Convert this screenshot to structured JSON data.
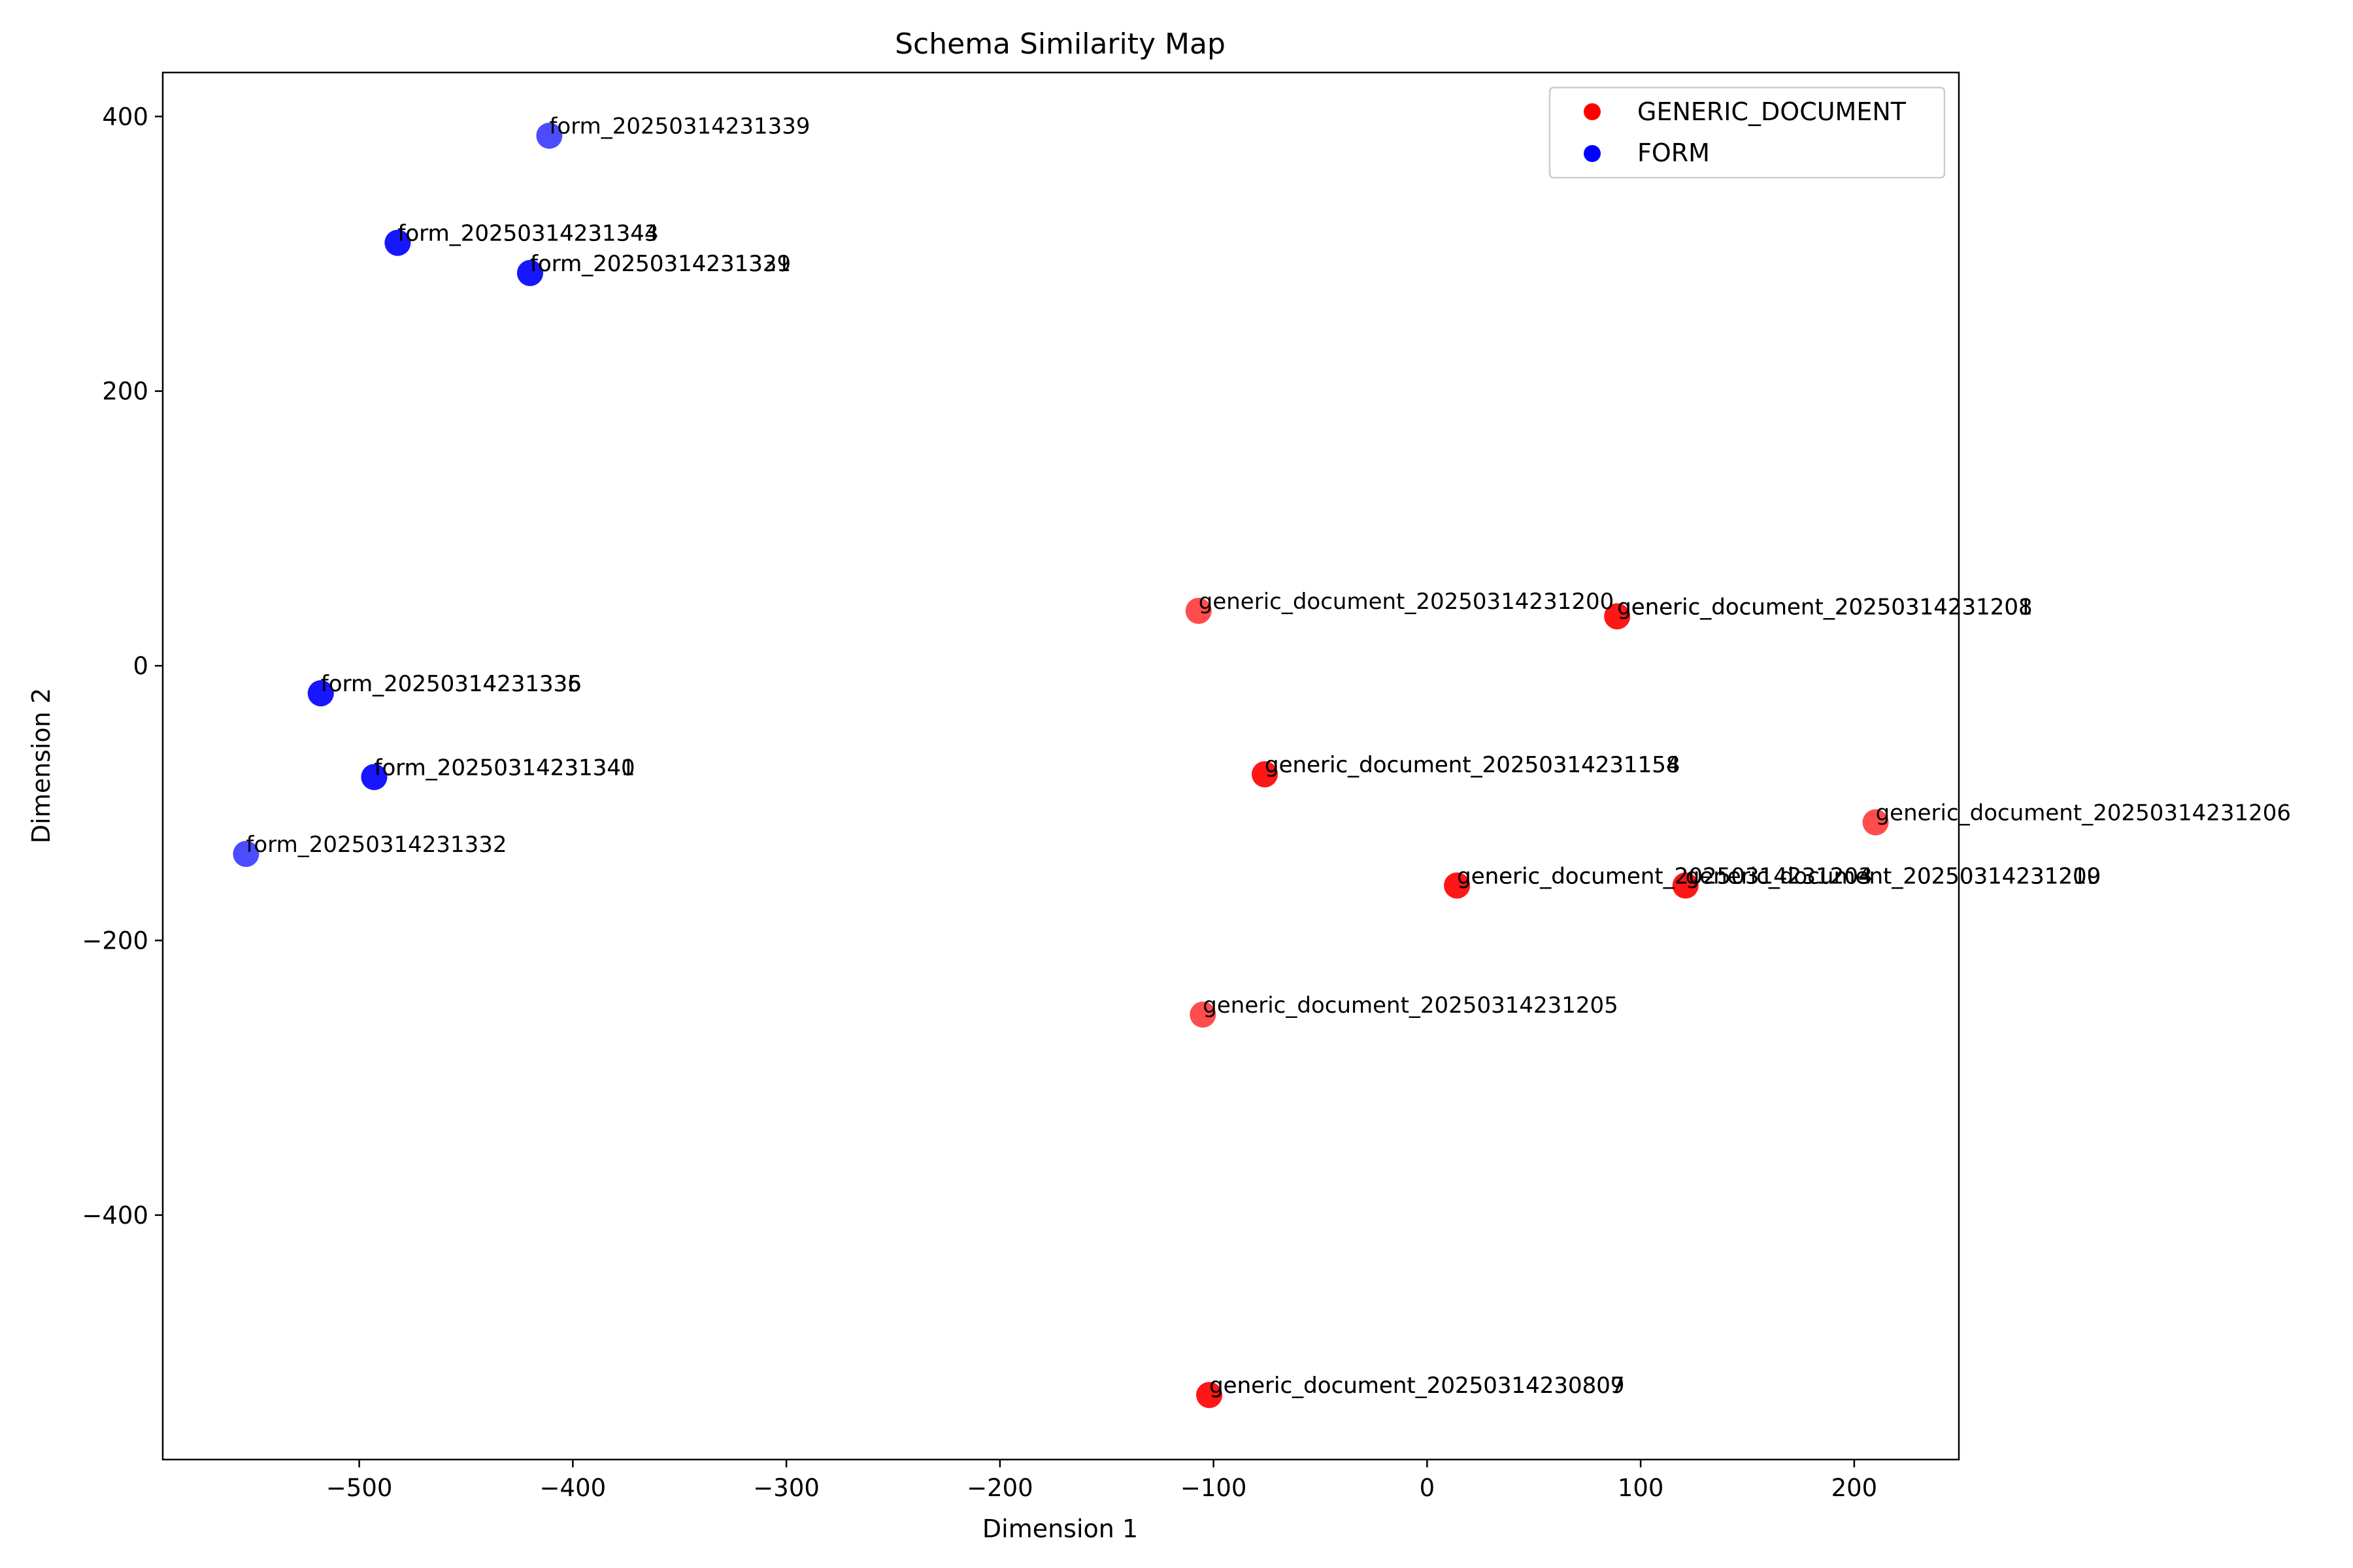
{
  "chart_data": {
    "type": "scatter",
    "title": "Schema Similarity Map",
    "xlabel": "Dimension 1",
    "ylabel": "Dimension 2",
    "xlim": [
      -592,
      249
    ],
    "ylim": [
      -578,
      432
    ],
    "xticks": [
      -500,
      -400,
      -300,
      -200,
      -100,
      0,
      100,
      200
    ],
    "yticks": [
      -400,
      -200,
      0,
      200,
      400
    ],
    "xtick_labels": [
      "−500",
      "−400",
      "−300",
      "−200",
      "−100",
      "0",
      "100",
      "200"
    ],
    "ytick_labels": [
      "−400",
      "−200",
      "0",
      "200",
      "400"
    ],
    "grid": false,
    "legend_position": "top-right",
    "series": [
      {
        "name": "GENERIC_DOCUMENT",
        "color": "#ff0000",
        "points": [
          {
            "x": -107,
            "y": 40,
            "label": "generic_document_20250314231200"
          },
          {
            "x": 89,
            "y": 36,
            "label": "generic_document_20250314231201"
          },
          {
            "x": 89,
            "y": 36,
            "label": "generic_document_20250314231208"
          },
          {
            "x": -76,
            "y": -79,
            "label": "generic_document_20250314231154"
          },
          {
            "x": -76,
            "y": -79,
            "label": "generic_document_20250314231158"
          },
          {
            "x": 210,
            "y": -114,
            "label": "generic_document_20250314231206"
          },
          {
            "x": 14,
            "y": -160,
            "label": "generic_document_20250314231203"
          },
          {
            "x": 14,
            "y": -160,
            "label": "generic_document_20250314231204"
          },
          {
            "x": 121,
            "y": -160,
            "label": "generic_document_20250314231209"
          },
          {
            "x": 121,
            "y": -160,
            "label": "generic_document_20250314231210"
          },
          {
            "x": -105,
            "y": -254,
            "label": "generic_document_20250314231205"
          },
          {
            "x": -102,
            "y": -531,
            "label": "generic_document_20250314230807"
          },
          {
            "x": -102,
            "y": -531,
            "label": "generic_document_20250314230809"
          }
        ]
      },
      {
        "name": "FORM",
        "color": "#0000ff",
        "points": [
          {
            "x": -411,
            "y": 386,
            "label": "form_20250314231339"
          },
          {
            "x": -482,
            "y": 308,
            "label": "form_20250314231343"
          },
          {
            "x": -482,
            "y": 308,
            "label": "form_20250314231344"
          },
          {
            "x": -420,
            "y": 286,
            "label": "form_20250314231329"
          },
          {
            "x": -420,
            "y": 286,
            "label": "form_20250314231331"
          },
          {
            "x": -518,
            "y": -20,
            "label": "form_20250314231335"
          },
          {
            "x": -518,
            "y": -20,
            "label": "form_20250314231336"
          },
          {
            "x": -493,
            "y": -81,
            "label": "form_20250314231340"
          },
          {
            "x": -493,
            "y": -81,
            "label": "form_20250314231341"
          },
          {
            "x": -553,
            "y": -137,
            "label": "form_20250314231332"
          }
        ]
      }
    ]
  }
}
